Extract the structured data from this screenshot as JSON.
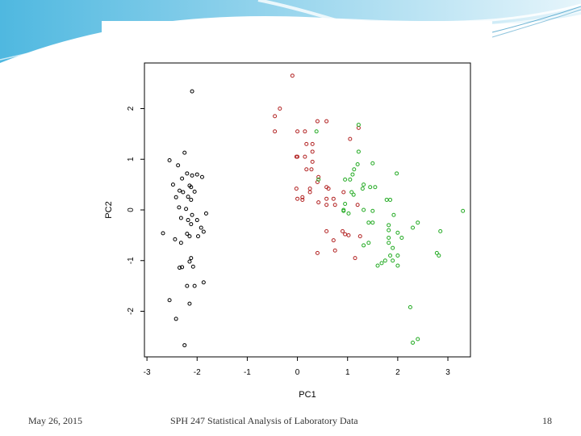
{
  "footer": {
    "date": "May 26, 2015",
    "title": "SPH 247 Statistical Analysis of Laboratory Data",
    "slide_number": "18"
  },
  "chart_data": {
    "type": "scatter",
    "title": "",
    "xlabel": "PC1",
    "ylabel": "PC2",
    "xlim": [
      -3.05,
      3.45
    ],
    "ylim": [
      -2.9,
      2.9
    ],
    "x_ticks": [
      "-3",
      "-2",
      "-1",
      "0",
      "1",
      "2",
      "3"
    ],
    "y_ticks": [
      "-2",
      "-1",
      "0",
      "1",
      "2"
    ],
    "grid": false,
    "legend": "none",
    "marker": "open-circle",
    "series": [
      {
        "color": "#000000",
        "points": [
          [
            -2.1,
            2.34
          ],
          [
            -2.25,
            1.13
          ],
          [
            -2.55,
            0.98
          ],
          [
            -2.38,
            0.88
          ],
          [
            -2.2,
            0.72
          ],
          [
            -2.0,
            0.7
          ],
          [
            -2.1,
            0.68
          ],
          [
            -1.9,
            0.65
          ],
          [
            -2.3,
            0.62
          ],
          [
            -2.48,
            0.5
          ],
          [
            -2.15,
            0.48
          ],
          [
            -2.12,
            0.45
          ],
          [
            -2.35,
            0.38
          ],
          [
            -2.28,
            0.35
          ],
          [
            -2.05,
            0.36
          ],
          [
            -2.18,
            0.26
          ],
          [
            -2.42,
            0.25
          ],
          [
            -2.12,
            0.2
          ],
          [
            -2.36,
            0.05
          ],
          [
            -2.22,
            0.02
          ],
          [
            -1.82,
            -0.07
          ],
          [
            -2.1,
            -0.1
          ],
          [
            -2.32,
            -0.16
          ],
          [
            -2.18,
            -0.2
          ],
          [
            -2.0,
            -0.2
          ],
          [
            -2.12,
            -0.28
          ],
          [
            -1.92,
            -0.35
          ],
          [
            -1.87,
            -0.43
          ],
          [
            -2.68,
            -0.46
          ],
          [
            -2.2,
            -0.47
          ],
          [
            -2.15,
            -0.52
          ],
          [
            -1.98,
            -0.52
          ],
          [
            -2.44,
            -0.58
          ],
          [
            -2.32,
            -0.65
          ],
          [
            -2.12,
            -0.95
          ],
          [
            -2.15,
            -1.02
          ],
          [
            -2.3,
            -1.13
          ],
          [
            -2.35,
            -1.14
          ],
          [
            -2.08,
            -1.12
          ],
          [
            -1.87,
            -1.43
          ],
          [
            -2.05,
            -1.5
          ],
          [
            -2.2,
            -1.5
          ],
          [
            -2.55,
            -1.78
          ],
          [
            -2.15,
            -1.85
          ],
          [
            -2.42,
            -2.15
          ],
          [
            -2.25,
            -2.67
          ]
        ]
      },
      {
        "color": "#b22222",
        "points": [
          [
            -0.1,
            2.65
          ],
          [
            -0.35,
            2.0
          ],
          [
            -0.45,
            1.85
          ],
          [
            0.0,
            1.55
          ],
          [
            0.15,
            1.55
          ],
          [
            0.4,
            1.75
          ],
          [
            0.58,
            1.75
          ],
          [
            -0.45,
            1.55
          ],
          [
            1.22,
            1.62
          ],
          [
            1.05,
            1.4
          ],
          [
            0.3,
            1.3
          ],
          [
            0.18,
            1.3
          ],
          [
            0.3,
            1.15
          ],
          [
            0.0,
            1.05
          ],
          [
            0.15,
            1.05
          ],
          [
            -0.02,
            1.05
          ],
          [
            0.3,
            0.95
          ],
          [
            0.18,
            0.8
          ],
          [
            0.28,
            0.8
          ],
          [
            0.42,
            0.65
          ],
          [
            0.4,
            0.55
          ],
          [
            0.58,
            0.45
          ],
          [
            -0.02,
            0.42
          ],
          [
            0.25,
            0.42
          ],
          [
            0.62,
            0.42
          ],
          [
            0.92,
            0.35
          ],
          [
            0.25,
            0.35
          ],
          [
            0.1,
            0.25
          ],
          [
            0.0,
            0.22
          ],
          [
            0.1,
            0.2
          ],
          [
            0.58,
            0.22
          ],
          [
            0.72,
            0.22
          ],
          [
            0.42,
            0.15
          ],
          [
            0.58,
            0.1
          ],
          [
            0.75,
            0.1
          ],
          [
            1.2,
            0.1
          ],
          [
            0.58,
            -0.42
          ],
          [
            0.9,
            -0.42
          ],
          [
            1.02,
            -0.5
          ],
          [
            1.25,
            -0.52
          ],
          [
            0.95,
            -0.48
          ],
          [
            0.72,
            -0.6
          ],
          [
            0.4,
            -0.85
          ],
          [
            0.75,
            -0.8
          ],
          [
            1.15,
            -0.95
          ]
        ]
      },
      {
        "color": "#22aa22",
        "points": [
          [
            1.22,
            1.68
          ],
          [
            0.38,
            1.55
          ],
          [
            1.22,
            1.15
          ],
          [
            1.5,
            0.92
          ],
          [
            1.2,
            0.9
          ],
          [
            1.13,
            0.8
          ],
          [
            1.98,
            0.72
          ],
          [
            1.1,
            0.7
          ],
          [
            1.05,
            0.6
          ],
          [
            0.42,
            0.6
          ],
          [
            0.95,
            0.6
          ],
          [
            1.32,
            0.5
          ],
          [
            1.45,
            0.45
          ],
          [
            1.55,
            0.45
          ],
          [
            1.3,
            0.42
          ],
          [
            1.08,
            0.35
          ],
          [
            1.12,
            0.3
          ],
          [
            1.78,
            0.2
          ],
          [
            1.85,
            0.2
          ],
          [
            0.95,
            0.12
          ],
          [
            0.92,
            0.0
          ],
          [
            0.92,
            -0.02
          ],
          [
            1.02,
            -0.07
          ],
          [
            1.32,
            0.0
          ],
          [
            1.5,
            -0.02
          ],
          [
            3.3,
            -0.02
          ],
          [
            1.92,
            -0.1
          ],
          [
            1.42,
            -0.25
          ],
          [
            1.5,
            -0.25
          ],
          [
            2.4,
            -0.25
          ],
          [
            1.82,
            -0.3
          ],
          [
            2.3,
            -0.35
          ],
          [
            1.82,
            -0.4
          ],
          [
            2.85,
            -0.42
          ],
          [
            2.0,
            -0.45
          ],
          [
            1.82,
            -0.55
          ],
          [
            2.08,
            -0.55
          ],
          [
            1.42,
            -0.65
          ],
          [
            1.82,
            -0.65
          ],
          [
            1.32,
            -0.7
          ],
          [
            1.9,
            -0.75
          ],
          [
            2.78,
            -0.85
          ],
          [
            2.82,
            -0.9
          ],
          [
            1.85,
            -0.9
          ],
          [
            2.0,
            -0.9
          ],
          [
            1.75,
            -1.0
          ],
          [
            1.9,
            -1.0
          ],
          [
            1.68,
            -1.05
          ],
          [
            1.6,
            -1.1
          ],
          [
            2.0,
            -1.1
          ],
          [
            2.25,
            -1.92
          ],
          [
            2.4,
            -2.55
          ],
          [
            2.3,
            -2.62
          ]
        ]
      }
    ]
  }
}
